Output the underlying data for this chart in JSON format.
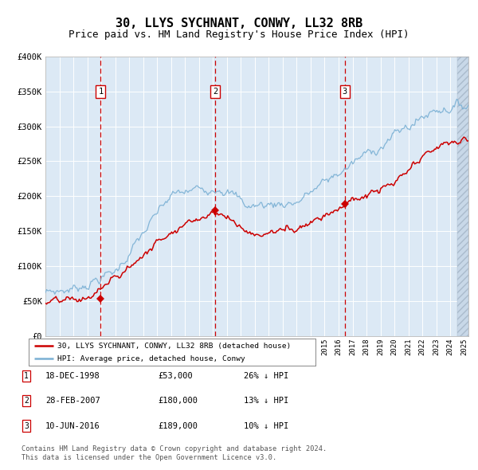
{
  "title": "30, LLYS SYCHNANT, CONWY, LL32 8RB",
  "subtitle": "Price paid vs. HM Land Registry's House Price Index (HPI)",
  "ylim": [
    0,
    400000
  ],
  "yticks": [
    0,
    50000,
    100000,
    150000,
    200000,
    250000,
    300000,
    350000,
    400000
  ],
  "ytick_labels": [
    "£0",
    "£50K",
    "£100K",
    "£150K",
    "£200K",
    "£250K",
    "£300K",
    "£350K",
    "£400K"
  ],
  "xlim_start": 1995.0,
  "xlim_end": 2025.3,
  "background_color": "#dce9f5",
  "grid_color": "#ffffff",
  "red_line_color": "#cc0000",
  "blue_line_color": "#7ab0d4",
  "sale_marker_color": "#cc0000",
  "sale_dates": [
    1998.96,
    2007.16,
    2016.44
  ],
  "sale_prices": [
    53000,
    180000,
    189000
  ],
  "sale_labels": [
    "1",
    "2",
    "3"
  ],
  "vline_color": "#cc0000",
  "legend_label_red": "30, LLYS SYCHNANT, CONWY, LL32 8RB (detached house)",
  "legend_label_blue": "HPI: Average price, detached house, Conwy",
  "table_rows": [
    [
      "1",
      "18-DEC-1998",
      "£53,000",
      "26% ↓ HPI"
    ],
    [
      "2",
      "28-FEB-2007",
      "£180,000",
      "13% ↓ HPI"
    ],
    [
      "3",
      "10-JUN-2016",
      "£189,000",
      "10% ↓ HPI"
    ]
  ],
  "footer_text": "Contains HM Land Registry data © Crown copyright and database right 2024.\nThis data is licensed under the Open Government Licence v3.0.",
  "hatch_region_start": 2024.5,
  "title_fontsize": 11,
  "subtitle_fontsize": 9
}
